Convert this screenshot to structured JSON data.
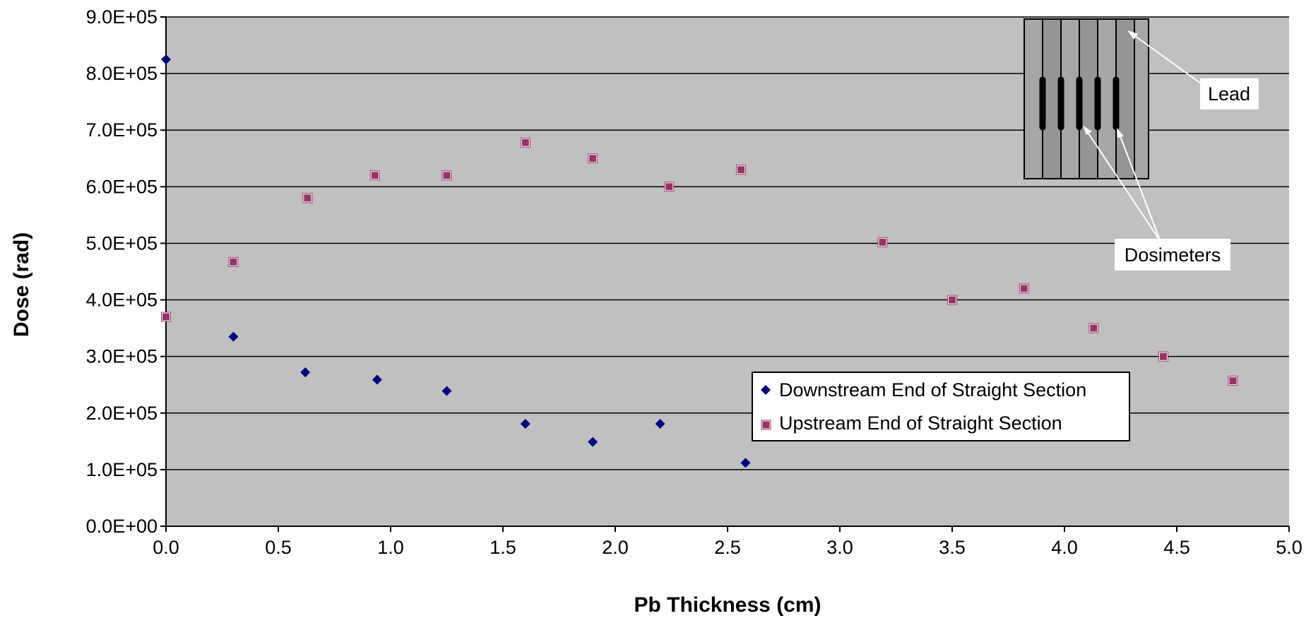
{
  "chart_data": {
    "type": "scatter",
    "title": "",
    "xlabel": "Pb Thickness (cm)",
    "ylabel": "Dose (rad)",
    "xlim": [
      0,
      5
    ],
    "ylim": [
      0,
      900000
    ],
    "x_ticks": [
      "0.0",
      "0.5",
      "1.0",
      "1.5",
      "2.0",
      "2.5",
      "3.0",
      "3.5",
      "4.0",
      "4.5",
      "5.0"
    ],
    "y_ticks": [
      "0.0E+00",
      "1.0E+05",
      "2.0E+05",
      "3.0E+05",
      "4.0E+05",
      "5.0E+05",
      "6.0E+05",
      "7.0E+05",
      "8.0E+05",
      "9.0E+05"
    ],
    "grid": "horizontal",
    "plot_background": "#C0C0C0",
    "legend_position": "lower-center-right",
    "series": [
      {
        "name": "Downstream End of Straight Section",
        "marker": "diamond",
        "color": "#000080",
        "points": [
          [
            0.0,
            825000
          ],
          [
            0.3,
            335000
          ],
          [
            0.62,
            272000
          ],
          [
            0.94,
            259000
          ],
          [
            1.25,
            239000
          ],
          [
            1.6,
            181000
          ],
          [
            1.9,
            149000
          ],
          [
            2.2,
            181000
          ],
          [
            2.58,
            112000
          ]
        ]
      },
      {
        "name": "Upstream End of Straight Section",
        "marker": "square",
        "color": "#993366",
        "points": [
          [
            0.0,
            370000
          ],
          [
            0.3,
            467000
          ],
          [
            0.63,
            580000
          ],
          [
            0.93,
            620000
          ],
          [
            1.25,
            620000
          ],
          [
            1.6,
            678000
          ],
          [
            1.9,
            650000
          ],
          [
            2.24,
            600000
          ],
          [
            2.56,
            630000
          ],
          [
            3.19,
            502000
          ],
          [
            3.5,
            400000
          ],
          [
            3.82,
            420000
          ],
          [
            4.13,
            350000
          ],
          [
            4.44,
            300000
          ],
          [
            4.75,
            257000
          ]
        ]
      }
    ],
    "annotations": [
      {
        "text": "Lead",
        "points_to": "lead plates in inset diagram"
      },
      {
        "text": "Dosimeters",
        "points_to": "dosimeters in inset diagram"
      }
    ]
  }
}
